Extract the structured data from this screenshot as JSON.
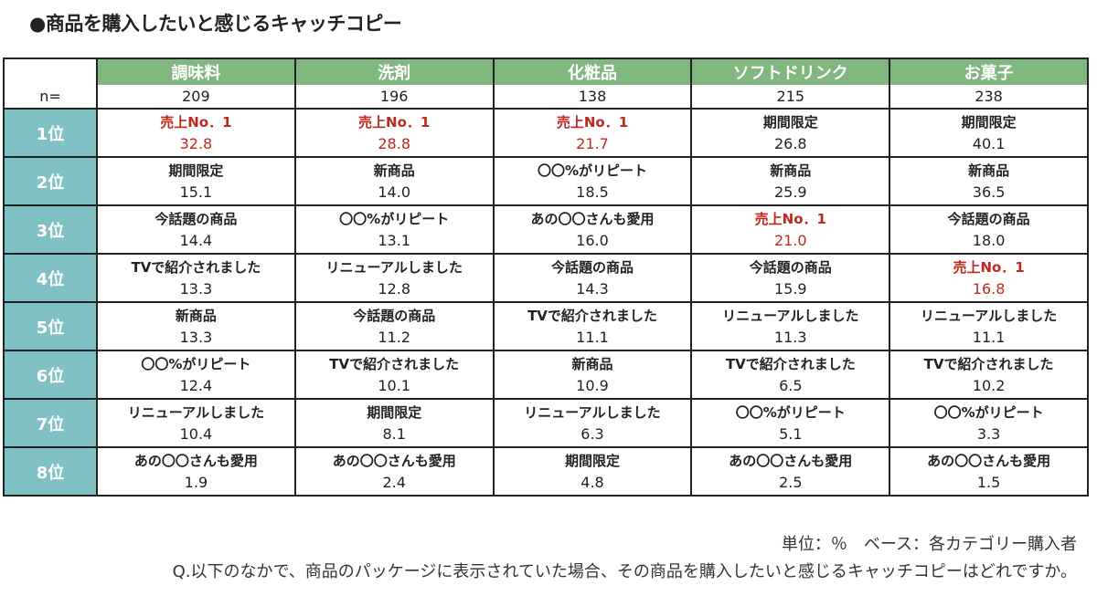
{
  "title": "●商品を購入したいと感じるキャッチコピー",
  "n_label": "n=",
  "categories": [
    "調味料",
    "洗剤",
    "化粧品",
    "ソフトドリンク",
    "お菓子"
  ],
  "n": [
    "209",
    "196",
    "138",
    "215",
    "238"
  ],
  "highlight_color": "#c0281e",
  "highlight_label": "売上No．1",
  "rows": [
    {
      "rank": "1位",
      "cells": [
        {
          "label": "売上No．1",
          "value": "32.8"
        },
        {
          "label": "売上No．1",
          "value": "28.8"
        },
        {
          "label": "売上No．1",
          "value": "21.7"
        },
        {
          "label": "期間限定",
          "value": "26.8"
        },
        {
          "label": "期間限定",
          "value": "40.1"
        }
      ]
    },
    {
      "rank": "2位",
      "cells": [
        {
          "label": "期間限定",
          "value": "15.1"
        },
        {
          "label": "新商品",
          "value": "14.0"
        },
        {
          "label": "〇〇%がリピート",
          "value": "18.5"
        },
        {
          "label": "新商品",
          "value": "25.9"
        },
        {
          "label": "新商品",
          "value": "36.5"
        }
      ]
    },
    {
      "rank": "3位",
      "cells": [
        {
          "label": "今話題の商品",
          "value": "14.4"
        },
        {
          "label": "〇〇%がリピート",
          "value": "13.1"
        },
        {
          "label": "あの〇〇さんも愛用",
          "value": "16.0"
        },
        {
          "label": "売上No．1",
          "value": "21.0"
        },
        {
          "label": "今話題の商品",
          "value": "18.0"
        }
      ]
    },
    {
      "rank": "4位",
      "cells": [
        {
          "label": "TVで紹介されました",
          "value": "13.3"
        },
        {
          "label": "リニューアルしました",
          "value": "12.8"
        },
        {
          "label": "今話題の商品",
          "value": "14.3"
        },
        {
          "label": "今話題の商品",
          "value": "15.9"
        },
        {
          "label": "売上No．1",
          "value": "16.8"
        }
      ]
    },
    {
      "rank": "5位",
      "cells": [
        {
          "label": "新商品",
          "value": "13.3"
        },
        {
          "label": "今話題の商品",
          "value": "11.2"
        },
        {
          "label": "TVで紹介されました",
          "value": "11.1"
        },
        {
          "label": "リニューアルしました",
          "value": "11.3"
        },
        {
          "label": "リニューアルしました",
          "value": "11.1"
        }
      ]
    },
    {
      "rank": "6位",
      "cells": [
        {
          "label": "〇〇%がリピート",
          "value": "12.4"
        },
        {
          "label": "TVで紹介されました",
          "value": "10.1"
        },
        {
          "label": "新商品",
          "value": "10.9"
        },
        {
          "label": "TVで紹介されました",
          "value": "6.5"
        },
        {
          "label": "TVで紹介されました",
          "value": "10.2"
        }
      ]
    },
    {
      "rank": "7位",
      "cells": [
        {
          "label": "リニューアルしました",
          "value": "10.4"
        },
        {
          "label": "期間限定",
          "value": "8.1"
        },
        {
          "label": "リニューアルしました",
          "value": "6.3"
        },
        {
          "label": "〇〇%がリピート",
          "value": "5.1"
        },
        {
          "label": "〇〇%がリピート",
          "value": "3.3"
        }
      ]
    },
    {
      "rank": "8位",
      "cells": [
        {
          "label": "あの〇〇さんも愛用",
          "value": "1.9"
        },
        {
          "label": "あの〇〇さんも愛用",
          "value": "2.4"
        },
        {
          "label": "期間限定",
          "value": "4.8"
        },
        {
          "label": "あの〇〇さんも愛用",
          "value": "2.5"
        },
        {
          "label": "あの〇〇さんも愛用",
          "value": "1.5"
        }
      ]
    }
  ],
  "footer": {
    "unit": "単位：％　ベース：各カテゴリー購入者",
    "question": "Q.以下のなかで、商品のパッケージに表示されていた場合、その商品を購入したいと感じるキャッチコピーはどれですか。"
  }
}
